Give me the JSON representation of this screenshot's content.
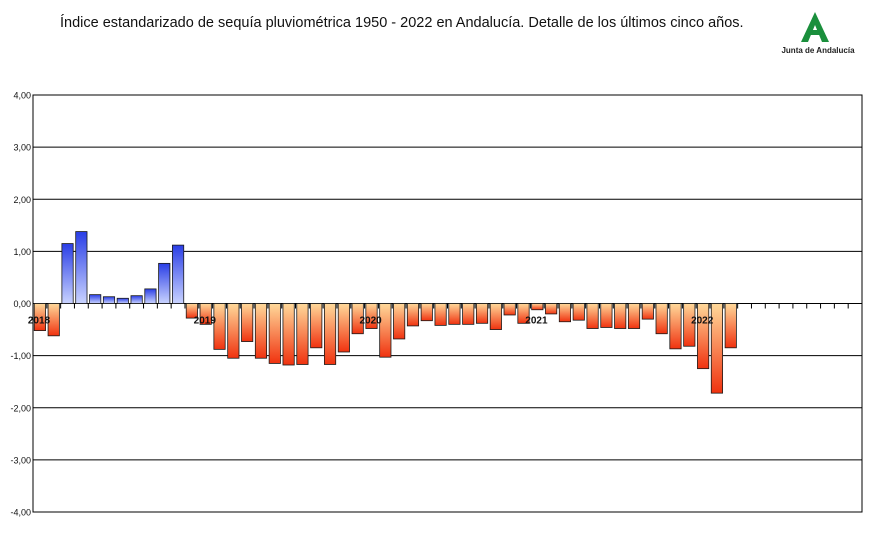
{
  "title": "Índice estandarizado de sequía pluviométrica 1950 - 2022 en Andalucía. Detalle de los últimos cinco años.",
  "logo": {
    "text": "Junta de Andalucía",
    "icon": "andalucia-logo-icon",
    "color": "#1a8f3c"
  },
  "colors": {
    "positive_top": "#2a3ee6",
    "positive_bottom": "#c9d3ff",
    "negative_top": "#ffd99a",
    "negative_bottom": "#f0320f",
    "bar_stroke": "#1a1a1a",
    "grid": "#000000"
  },
  "chart_data": {
    "type": "bar",
    "title": "Índice estandarizado de sequía pluviométrica 1950 - 2022 en Andalucía. Detalle de los últimos cinco años.",
    "xlabel": "",
    "ylabel": "",
    "ylim": [
      -4,
      4
    ],
    "yticks": [
      "-4,00",
      "-3,00",
      "-2,00",
      "-1,00",
      "0,00",
      "1,00",
      "2,00",
      "3,00",
      "4,00"
    ],
    "grid": true,
    "year_labels": [
      {
        "label": "2018",
        "month_index": 0
      },
      {
        "label": "2019",
        "month_index": 12
      },
      {
        "label": "2020",
        "month_index": 24
      },
      {
        "label": "2021",
        "month_index": 36
      },
      {
        "label": "2022",
        "month_index": 48
      }
    ],
    "total_months": 60,
    "values": [
      -0.52,
      -0.62,
      1.15,
      1.38,
      0.17,
      0.13,
      0.1,
      0.15,
      0.28,
      0.77,
      1.12,
      -0.28,
      -0.4,
      -0.88,
      -1.05,
      -0.73,
      -1.05,
      -1.15,
      -1.18,
      -1.17,
      -0.85,
      -1.17,
      -0.93,
      -0.58,
      -0.48,
      -1.03,
      -0.68,
      -0.43,
      -0.33,
      -0.42,
      -0.4,
      -0.4,
      -0.38,
      -0.5,
      -0.22,
      -0.38,
      -0.12,
      -0.2,
      -0.35,
      -0.32,
      -0.48,
      -0.46,
      -0.48,
      -0.48,
      -0.3,
      -0.58,
      -0.87,
      -0.82,
      -1.25,
      -1.72,
      -0.85
    ]
  }
}
